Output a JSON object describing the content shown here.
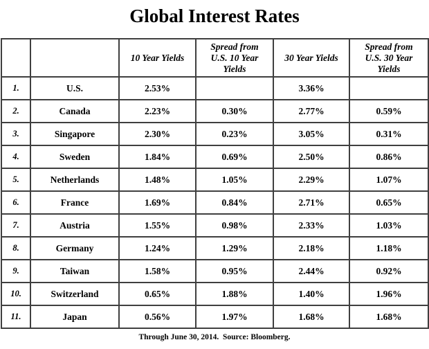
{
  "title": "Global Interest Rates",
  "footer_note": "Through June 30, 2014.  Source: Bloomberg.",
  "colors": {
    "background": "#ffffff",
    "text": "#000000",
    "border_outer": "#262626",
    "border_inner": "#3f3f3f"
  },
  "chart_data": {
    "type": "table",
    "title": "Global Interest Rates",
    "columns": [
      "",
      "",
      "10 Year Yields",
      "Spread from U.S. 10 Year Yields",
      "30 Year Yields",
      "Spread from U.S. 30 Year Yields"
    ],
    "rows": [
      [
        "1.",
        "U.S.",
        "2.53%",
        "",
        "3.36%",
        ""
      ],
      [
        "2.",
        "Canada",
        "2.23%",
        "0.30%",
        "2.77%",
        "0.59%"
      ],
      [
        "3.",
        "Singapore",
        "2.30%",
        "0.23%",
        "3.05%",
        "0.31%"
      ],
      [
        "4.",
        "Sweden",
        "1.84%",
        "0.69%",
        "2.50%",
        "0.86%"
      ],
      [
        "5.",
        "Netherlands",
        "1.48%",
        "1.05%",
        "2.29%",
        "1.07%"
      ],
      [
        "6.",
        "France",
        "1.69%",
        "0.84%",
        "2.71%",
        "0.65%"
      ],
      [
        "7.",
        "Austria",
        "1.55%",
        "0.98%",
        "2.33%",
        "1.03%"
      ],
      [
        "8.",
        "Germany",
        "1.24%",
        "1.29%",
        "2.18%",
        "1.18%"
      ],
      [
        "9.",
        "Taiwan",
        "1.58%",
        "0.95%",
        "2.44%",
        "0.92%"
      ],
      [
        "10.",
        "Switzerland",
        "0.65%",
        "1.88%",
        "1.40%",
        "1.96%"
      ],
      [
        "11.",
        "Japan",
        "0.56%",
        "1.97%",
        "1.68%",
        "1.68%"
      ]
    ],
    "as_of": "Through June 30, 2014.",
    "source": "Bloomberg"
  }
}
